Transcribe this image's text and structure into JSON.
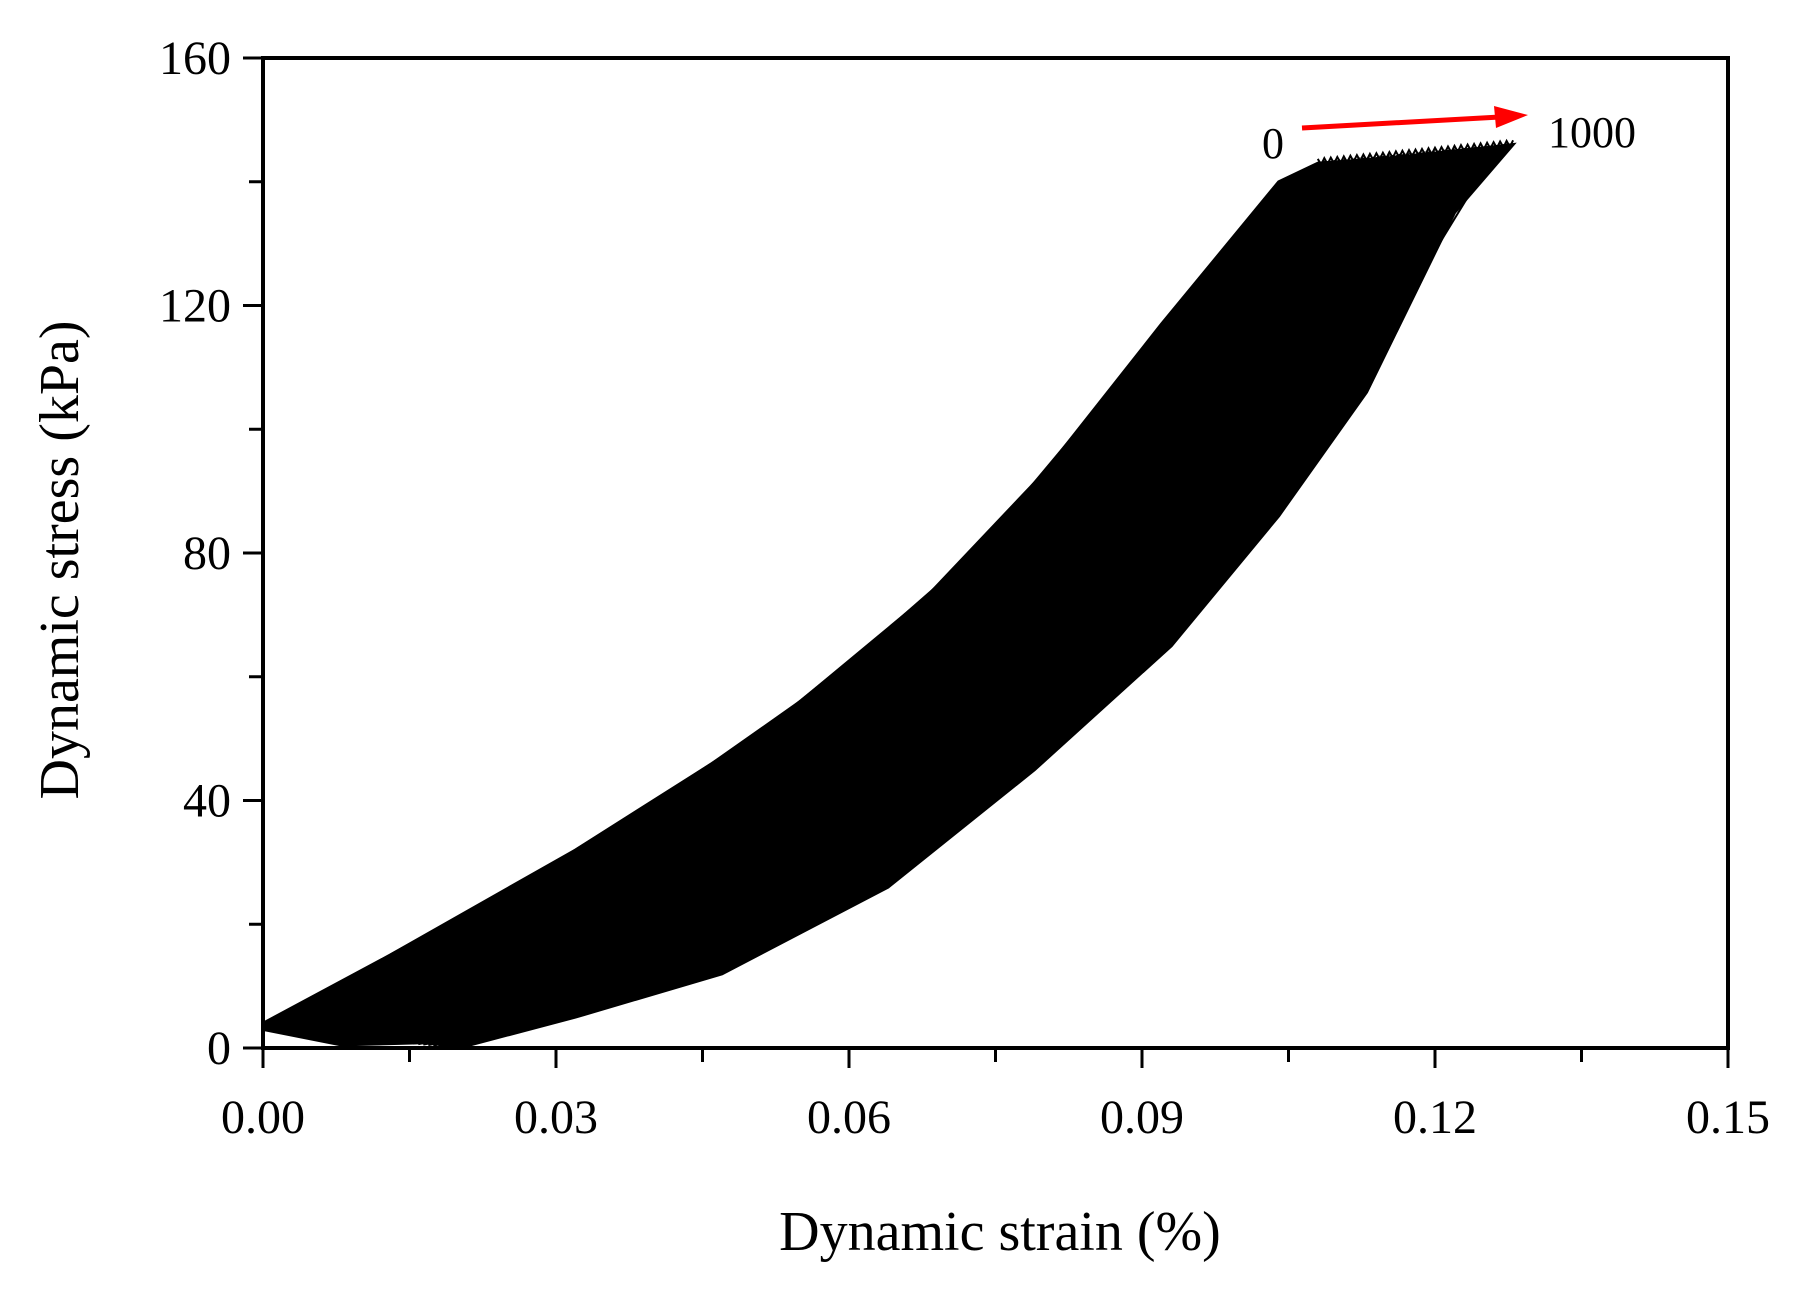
{
  "chart_data": {
    "type": "line",
    "title": "",
    "xlabel": "Dynamic strain (%)",
    "ylabel": "Dynamic stress (kPa)",
    "xlim": [
      0,
      0.15
    ],
    "ylim": [
      0,
      160
    ],
    "x_ticks": [
      0.0,
      0.03,
      0.06,
      0.09,
      0.12,
      0.15
    ],
    "x_tick_labels": [
      "0.00",
      "0.03",
      "0.06",
      "0.09",
      "0.12",
      "0.15"
    ],
    "x_minor_ticks": [
      0.015,
      0.045,
      0.075,
      0.105,
      0.135
    ],
    "y_ticks": [
      0,
      40,
      80,
      120,
      160
    ],
    "y_tick_labels": [
      "0",
      "40",
      "80",
      "120",
      "160"
    ],
    "y_minor_ticks": [
      20,
      60,
      100,
      140
    ],
    "grid": false,
    "series_color": "#000000",
    "annotation": {
      "start_label": "0",
      "end_label": "1000",
      "color": "#ff0000"
    },
    "loops": {
      "count": 1000,
      "first_cycle": {
        "loading": [
          [
            0.0,
            4
          ],
          [
            0.013,
            15
          ],
          [
            0.032,
            32
          ],
          [
            0.046,
            46
          ],
          [
            0.055,
            56
          ],
          [
            0.068,
            73
          ],
          [
            0.08,
            93
          ],
          [
            0.092,
            117
          ],
          [
            0.104,
            140
          ],
          [
            0.108,
            143
          ]
        ],
        "unloading": [
          [
            0.108,
            143
          ],
          [
            0.099,
            120
          ],
          [
            0.089,
            95
          ],
          [
            0.078,
            72
          ],
          [
            0.067,
            52
          ],
          [
            0.054,
            33
          ],
          [
            0.04,
            18
          ],
          [
            0.025,
            7
          ],
          [
            0.012,
            2
          ],
          [
            0.0,
            3
          ]
        ]
      },
      "last_cycle": {
        "loading": [
          [
            0.02,
            1
          ],
          [
            0.033,
            9
          ],
          [
            0.046,
            20
          ],
          [
            0.062,
            36
          ],
          [
            0.078,
            56
          ],
          [
            0.093,
            80
          ],
          [
            0.106,
            108
          ],
          [
            0.118,
            134
          ],
          [
            0.127,
            146
          ],
          [
            0.128,
            146
          ]
        ],
        "unloading": [
          [
            0.128,
            146
          ],
          [
            0.122,
            135
          ],
          [
            0.113,
            106
          ],
          [
            0.104,
            86
          ],
          [
            0.093,
            65
          ],
          [
            0.079,
            45
          ],
          [
            0.064,
            26
          ],
          [
            0.047,
            12
          ],
          [
            0.032,
            5
          ],
          [
            0.02,
            0
          ]
        ]
      },
      "peak_stress": [
        [
          0.108,
          143
        ],
        [
          0.117,
          144
        ],
        [
          0.128,
          146
        ]
      ]
    }
  }
}
